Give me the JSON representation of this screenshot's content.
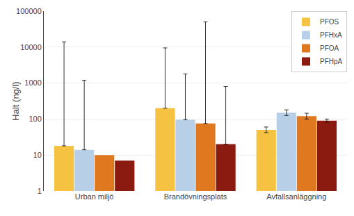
{
  "chart_data": {
    "type": "bar",
    "categories": [
      "Urban miljö",
      "Brandövningsplats",
      "Avfallsanläggning"
    ],
    "series": [
      {
        "name": "PFOS",
        "color": "#F5C242",
        "values": [
          18,
          200,
          50
        ],
        "whisker_tops": [
          14000,
          9500,
          null
        ],
        "err_plus": [
          null,
          null,
          10
        ],
        "err_minus": [
          null,
          null,
          8
        ]
      },
      {
        "name": "PFHxA",
        "color": "#B8CFE8",
        "values": [
          14,
          95,
          150
        ],
        "whisker_tops": [
          1200,
          1800,
          null
        ],
        "err_plus": [
          null,
          null,
          30
        ],
        "err_minus": [
          null,
          null,
          25
        ]
      },
      {
        "name": "PFOA",
        "color": "#E07820",
        "values": [
          10,
          75,
          120
        ],
        "whisker_tops": [
          null,
          50000,
          null
        ],
        "err_plus": [
          null,
          null,
          25
        ],
        "err_minus": [
          null,
          null,
          20
        ]
      },
      {
        "name": "PFHpA",
        "color": "#8B1A10",
        "values": [
          7,
          20,
          90
        ],
        "whisker_tops": [
          null,
          800,
          null
        ],
        "err_plus": [
          null,
          null,
          10
        ],
        "err_minus": [
          null,
          null,
          8
        ]
      }
    ],
    "ylabel": "Halt (ng/l)",
    "log": "y",
    "ylim": [
      1,
      100000
    ],
    "yticks": [
      1,
      10,
      100,
      1000,
      10000,
      100000
    ],
    "grid": true,
    "legend": "upper right"
  }
}
